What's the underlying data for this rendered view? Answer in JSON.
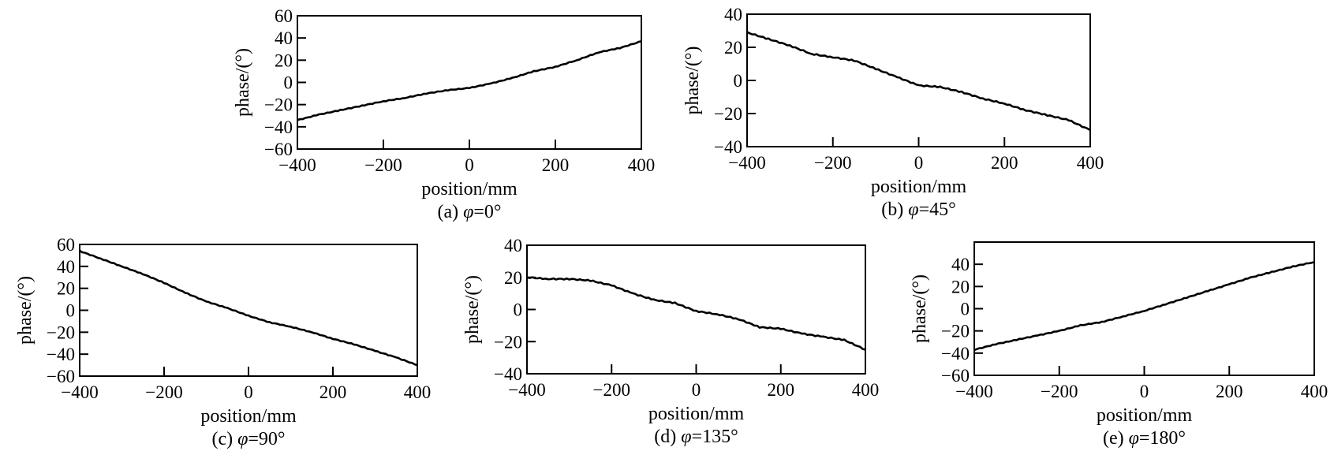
{
  "chart_data": [
    {
      "type": "line",
      "caption_prefix": "(a) ",
      "caption_symbol": "φ",
      "caption_value": "=0°",
      "xlabel": "position/mm",
      "ylabel": "phase/(°)",
      "xlim": [
        -400,
        400
      ],
      "ylim": [
        -60,
        60
      ],
      "xticks": [
        -400,
        -200,
        0,
        200,
        400
      ],
      "xtick_labels": [
        "−400",
        "−200",
        "0",
        "200",
        "400"
      ],
      "yticks": [
        -60,
        -40,
        -20,
        0,
        20,
        40,
        60
      ],
      "ytick_labels": [
        "−60",
        "−40",
        "−20",
        "0",
        "20",
        "40",
        "60"
      ],
      "grid": false,
      "series": [
        {
          "x": [
            -400,
            -350,
            -300,
            -250,
            -200,
            -150,
            -100,
            -50,
            0,
            50,
            100,
            150,
            200,
            250,
            300,
            350,
            400
          ],
          "y": [
            -34,
            -29,
            -25,
            -21,
            -17,
            -14,
            -10,
            -7,
            -5,
            -1,
            4,
            10,
            14,
            20,
            27,
            31,
            37
          ]
        }
      ]
    },
    {
      "type": "line",
      "caption_prefix": "(b) ",
      "caption_symbol": "φ",
      "caption_value": "=45°",
      "xlabel": "position/mm",
      "ylabel": "phase/(°)",
      "xlim": [
        -400,
        400
      ],
      "ylim": [
        -40,
        40
      ],
      "xticks": [
        -400,
        -200,
        0,
        200,
        400
      ],
      "xtick_labels": [
        "−400",
        "−200",
        "0",
        "200",
        "400"
      ],
      "yticks": [
        -40,
        -20,
        0,
        20,
        40
      ],
      "ytick_labels": [
        "−40",
        "−20",
        "0",
        "20",
        "40"
      ],
      "grid": false,
      "series": [
        {
          "x": [
            -400,
            -350,
            -300,
            -250,
            -200,
            -150,
            -100,
            -50,
            0,
            50,
            100,
            150,
            200,
            250,
            300,
            350,
            400
          ],
          "y": [
            29,
            25,
            21,
            16,
            14,
            12,
            7,
            2,
            -3,
            -4,
            -7,
            -11,
            -14,
            -18,
            -21,
            -24,
            -30
          ]
        }
      ]
    },
    {
      "type": "line",
      "caption_prefix": "(c) ",
      "caption_symbol": "φ",
      "caption_value": "=90°",
      "xlabel": "position/mm",
      "ylabel": "phase/(°)",
      "xlim": [
        -400,
        400
      ],
      "ylim": [
        -60,
        60
      ],
      "xticks": [
        -400,
        -200,
        0,
        200,
        400
      ],
      "xtick_labels": [
        "−400",
        "−200",
        "0",
        "200",
        "400"
      ],
      "yticks": [
        -60,
        -40,
        -20,
        0,
        20,
        40,
        60
      ],
      "ytick_labels": [
        "−60",
        "−40",
        "−20",
        "0",
        "20",
        "40",
        "60"
      ],
      "grid": false,
      "series": [
        {
          "x": [
            -400,
            -350,
            -300,
            -250,
            -200,
            -150,
            -100,
            -50,
            0,
            50,
            100,
            150,
            200,
            250,
            300,
            350,
            400
          ],
          "y": [
            54,
            47,
            40,
            33,
            25,
            16,
            8,
            2,
            -5,
            -11,
            -15,
            -20,
            -26,
            -31,
            -37,
            -43,
            -50
          ]
        }
      ]
    },
    {
      "type": "line",
      "caption_prefix": "(d) ",
      "caption_symbol": "φ",
      "caption_value": "=135°",
      "xlabel": "position/mm",
      "ylabel": "phase/(°)",
      "xlim": [
        -400,
        400
      ],
      "ylim": [
        -40,
        40
      ],
      "xticks": [
        -400,
        -200,
        0,
        200,
        400
      ],
      "xtick_labels": [
        "−400",
        "−200",
        "0",
        "200",
        "400"
      ],
      "yticks": [
        -40,
        -20,
        0,
        20,
        40
      ],
      "ytick_labels": [
        "−40",
        "−20",
        "0",
        "20",
        "40"
      ],
      "grid": false,
      "series": [
        {
          "x": [
            -400,
            -350,
            -300,
            -250,
            -200,
            -150,
            -100,
            -50,
            0,
            50,
            100,
            150,
            200,
            250,
            300,
            350,
            400
          ],
          "y": [
            20,
            19,
            19,
            18,
            15,
            10,
            6,
            4,
            -1,
            -3,
            -6,
            -11,
            -12,
            -15,
            -17,
            -19,
            -25
          ]
        }
      ]
    },
    {
      "type": "line",
      "caption_prefix": "(e) ",
      "caption_symbol": "φ",
      "caption_value": "=180°",
      "xlabel": "position/mm",
      "ylabel": "phase/(°)",
      "xlim": [
        -400,
        400
      ],
      "ylim": [
        -60,
        60
      ],
      "xticks": [
        -400,
        -200,
        0,
        200,
        400
      ],
      "xtick_labels": [
        "−400",
        "−200",
        "0",
        "200",
        "400"
      ],
      "yticks": [
        -60,
        -40,
        -20,
        0,
        20,
        40
      ],
      "ytick_labels": [
        "−60",
        "−40",
        "−20",
        "0",
        "20",
        "40"
      ],
      "grid": false,
      "series": [
        {
          "x": [
            -400,
            -350,
            -300,
            -250,
            -200,
            -150,
            -100,
            -50,
            0,
            50,
            100,
            150,
            200,
            250,
            300,
            350,
            400
          ],
          "y": [
            -37,
            -32,
            -28,
            -24,
            -20,
            -15,
            -12,
            -7,
            -2,
            4,
            10,
            16,
            22,
            28,
            33,
            38,
            42
          ]
        }
      ]
    }
  ]
}
